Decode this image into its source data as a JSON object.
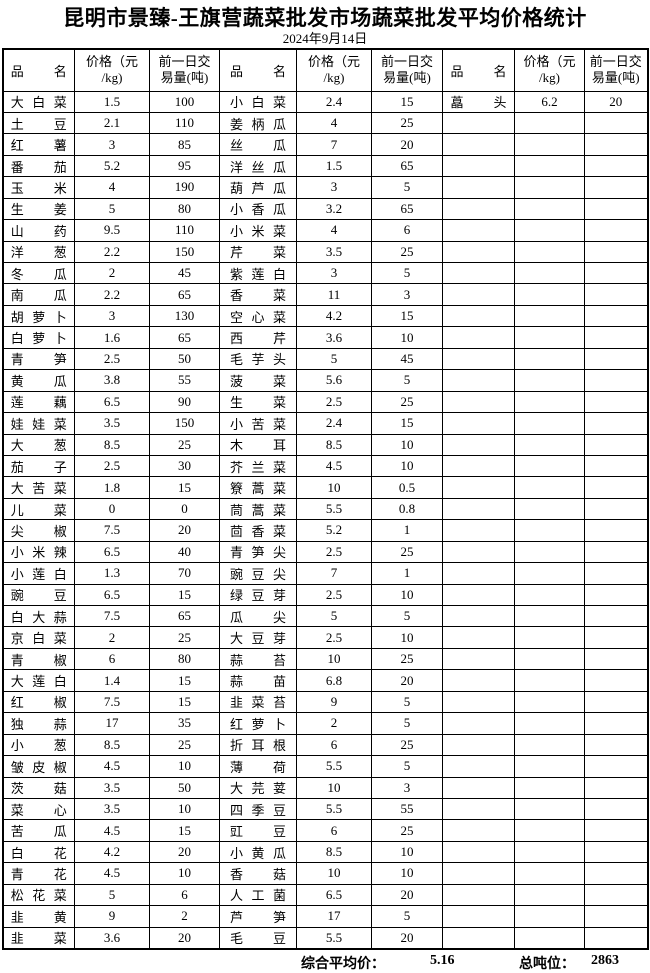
{
  "title": "昆明市景臻-王旗营蔬菜批发市场蔬菜批发平均价格统计",
  "date": "2024年9月14日",
  "table": {
    "headers": {
      "name": "品名",
      "price": "价格（元\n/kg)",
      "volume": "前一日交\n易量(吨)"
    },
    "groups": [
      {
        "rows": [
          [
            "大白菜",
            "1.5",
            "100"
          ],
          [
            "土豆",
            "2.1",
            "110"
          ],
          [
            "红薯",
            "3",
            "85"
          ],
          [
            "番茄",
            "5.2",
            "95"
          ],
          [
            "玉米",
            "4",
            "190"
          ],
          [
            "生姜",
            "5",
            "80"
          ],
          [
            "山药",
            "9.5",
            "110"
          ],
          [
            "洋葱",
            "2.2",
            "150"
          ],
          [
            "冬瓜",
            "2",
            "45"
          ],
          [
            "南瓜",
            "2.2",
            "65"
          ],
          [
            "胡萝卜",
            "3",
            "130"
          ],
          [
            "白萝卜",
            "1.6",
            "65"
          ],
          [
            "青笋",
            "2.5",
            "50"
          ],
          [
            "黄瓜",
            "3.8",
            "55"
          ],
          [
            "莲藕",
            "6.5",
            "90"
          ],
          [
            "娃娃菜",
            "3.5",
            "150"
          ],
          [
            "大葱",
            "8.5",
            "25"
          ],
          [
            "茄子",
            "2.5",
            "30"
          ],
          [
            "大苦菜",
            "1.8",
            "15"
          ],
          [
            "儿菜",
            "0",
            "0"
          ],
          [
            "尖椒",
            "7.5",
            "20"
          ],
          [
            "小米辣",
            "6.5",
            "40"
          ],
          [
            "小莲白",
            "1.3",
            "70"
          ],
          [
            "豌豆",
            "6.5",
            "15"
          ],
          [
            "白大蒜",
            "7.5",
            "65"
          ],
          [
            "京白菜",
            "2",
            "25"
          ],
          [
            "青椒",
            "6",
            "80"
          ],
          [
            "大莲白",
            "1.4",
            "15"
          ],
          [
            "红椒",
            "7.5",
            "15"
          ],
          [
            "独蒜",
            "17",
            "35"
          ],
          [
            "小葱",
            "8.5",
            "25"
          ],
          [
            "皱皮椒",
            "4.5",
            "10"
          ],
          [
            "茨菇",
            "3.5",
            "50"
          ],
          [
            "菜心",
            "3.5",
            "10"
          ],
          [
            "苦瓜",
            "4.5",
            "15"
          ],
          [
            "白花",
            "4.2",
            "20"
          ],
          [
            "青花",
            "4.5",
            "10"
          ],
          [
            "松花菜",
            "5",
            "6"
          ],
          [
            "韭黄",
            "9",
            "2"
          ],
          [
            "韭菜",
            "3.6",
            "20"
          ]
        ]
      },
      {
        "rows": [
          [
            "小白菜",
            "2.4",
            "15"
          ],
          [
            "姜柄瓜",
            "4",
            "25"
          ],
          [
            "丝瓜",
            "7",
            "20"
          ],
          [
            "洋丝瓜",
            "1.5",
            "65"
          ],
          [
            "葫芦瓜",
            "3",
            "5"
          ],
          [
            "小香瓜",
            "3.2",
            "65"
          ],
          [
            "小米菜",
            "4",
            "6"
          ],
          [
            "芹菜",
            "3.5",
            "25"
          ],
          [
            "紫莲白",
            "3",
            "5"
          ],
          [
            "香菜",
            "11",
            "3"
          ],
          [
            "空心菜",
            "4.2",
            "15"
          ],
          [
            "西芹",
            "3.6",
            "10"
          ],
          [
            "毛芋头",
            "5",
            "45"
          ],
          [
            "菠菜",
            "5.6",
            "5"
          ],
          [
            "生菜",
            "2.5",
            "25"
          ],
          [
            "小苦菜",
            "2.4",
            "15"
          ],
          [
            "木耳",
            "8.5",
            "10"
          ],
          [
            "芥兰菜",
            "4.5",
            "10"
          ],
          [
            "簝蒿菜",
            "10",
            "0.5"
          ],
          [
            "茼蒿菜",
            "5.5",
            "0.8"
          ],
          [
            "茴香菜",
            "5.2",
            "1"
          ],
          [
            "青笋尖",
            "2.5",
            "25"
          ],
          [
            "豌豆尖",
            "7",
            "1"
          ],
          [
            "绿豆芽",
            "2.5",
            "10"
          ],
          [
            "瓜尖",
            "5",
            "5"
          ],
          [
            "大豆芽",
            "2.5",
            "10"
          ],
          [
            "蒜苔",
            "10",
            "25"
          ],
          [
            "蒜苗",
            "6.8",
            "20"
          ],
          [
            "韭菜苔",
            "9",
            "5"
          ],
          [
            "红萝卜",
            "2",
            "5"
          ],
          [
            "折耳根",
            "6",
            "25"
          ],
          [
            "薄荷",
            "5.5",
            "5"
          ],
          [
            "大芫荽",
            "10",
            "3"
          ],
          [
            "四季豆",
            "5.5",
            "55"
          ],
          [
            "豇豆",
            "6",
            "25"
          ],
          [
            "小黄瓜",
            "8.5",
            "10"
          ],
          [
            "香菇",
            "10",
            "10"
          ],
          [
            "人工菌",
            "6.5",
            "20"
          ],
          [
            "芦笋",
            "17",
            "5"
          ],
          [
            "毛豆",
            "5.5",
            "20"
          ]
        ]
      },
      {
        "rows": [
          [
            "藠头",
            "6.2",
            "20"
          ]
        ]
      }
    ]
  },
  "footer": {
    "avg_label": "综合平均价：",
    "avg_value": "5.16",
    "tonnage_label": "总吨位：",
    "tonnage_value": "2863"
  }
}
